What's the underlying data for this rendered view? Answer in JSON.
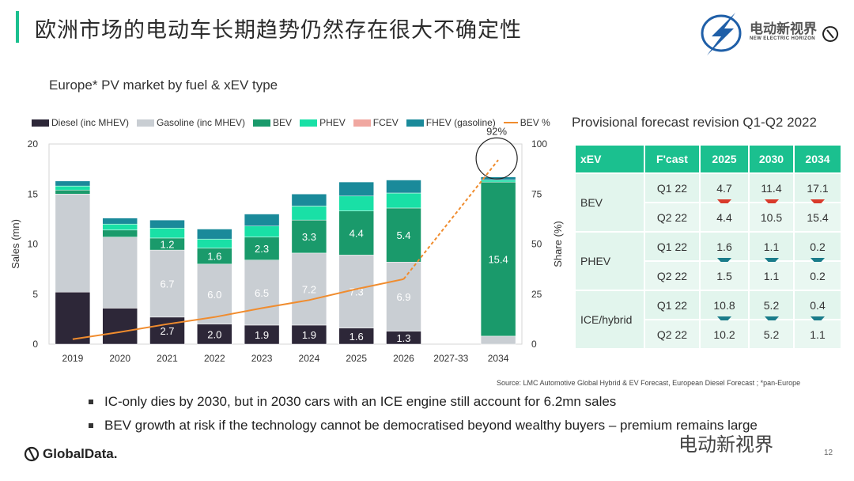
{
  "header": {
    "title": "欧洲市场的电动车长期趋势仍然存在很大不确定性",
    "brand_name": "电动新视界",
    "brand_sub": "NEW ELECTRIC HORIZON"
  },
  "chart_data": {
    "type": "bar",
    "subtitle": "Europe* PV market by fuel & xEV type",
    "ylabel": "Sales (mn)",
    "y2label": "Share (%)",
    "ylim": [
      0,
      20
    ],
    "y2lim": [
      0,
      100
    ],
    "yticks": [
      "0",
      "5",
      "10",
      "15",
      "20"
    ],
    "y2ticks": [
      "0",
      "25",
      "50",
      "75",
      "100"
    ],
    "categories": [
      "2019",
      "2020",
      "2021",
      "2022",
      "2023",
      "2024",
      "2025",
      "2026",
      "2027-33",
      "2034"
    ],
    "series": [
      {
        "name": "Diesel (inc MHEV)",
        "color": "#2d2738",
        "values": [
          5.2,
          3.6,
          2.7,
          2.0,
          1.9,
          1.9,
          1.6,
          1.3,
          null,
          0.0
        ]
      },
      {
        "name": "Gasoline (inc MHEV)",
        "color": "#c9ced3",
        "values": [
          9.8,
          7.1,
          6.7,
          6.0,
          6.5,
          7.2,
          7.3,
          6.9,
          null,
          0.8
        ]
      },
      {
        "name": "BEV",
        "color": "#1a9a6b",
        "values": [
          0.4,
          0.7,
          1.2,
          1.6,
          2.3,
          3.3,
          4.4,
          5.4,
          null,
          15.4
        ]
      },
      {
        "name": "PHEV",
        "color": "#19e0a6",
        "values": [
          0.4,
          0.6,
          1.0,
          0.9,
          1.1,
          1.4,
          1.5,
          1.5,
          null,
          0.2
        ]
      },
      {
        "name": "FCEV",
        "color": "#f0a7a0",
        "values": [
          0.0,
          0.0,
          0.0,
          0.0,
          0.0,
          0.0,
          0.0,
          0.0,
          null,
          0.0
        ]
      },
      {
        "name": "FHEV (gasoline)",
        "color": "#1a8a9a",
        "values": [
          0.5,
          0.6,
          0.8,
          1.0,
          1.2,
          1.2,
          1.4,
          1.3,
          null,
          0.3
        ]
      }
    ],
    "bar_labels": {
      "Diesel (inc MHEV)": [
        null,
        null,
        "2.7",
        "2.0",
        "1.9",
        "1.9",
        "1.6",
        "1.3",
        null,
        null
      ],
      "Gasoline (inc MHEV)": [
        null,
        null,
        "6.7",
        "6.0",
        "6.5",
        "7.2",
        "7.3",
        "6.9",
        null,
        null
      ],
      "BEV": [
        null,
        null,
        "1.2",
        "1.6",
        "2.3",
        "3.3",
        "4.4",
        "5.4",
        null,
        "15.4"
      ]
    },
    "line": {
      "name": "BEV %",
      "color": "#f08c2e",
      "axis": "right",
      "values": [
        2.5,
        6,
        10,
        13.5,
        18,
        22,
        27.5,
        32.5,
        null,
        92
      ]
    },
    "annotation": "92%"
  },
  "forecast": {
    "title": "Provisional forecast revision Q1-Q2 2022",
    "headers": [
      "xEV",
      "F'cast",
      "2025",
      "2030",
      "2034"
    ],
    "groups": [
      {
        "name": "BEV",
        "arrow": "red",
        "rows": [
          {
            "fcast": "Q1 22",
            "values": [
              "4.7",
              "11.4",
              "17.1"
            ]
          },
          {
            "fcast": "Q2 22",
            "values": [
              "4.4",
              "10.5",
              "15.4"
            ]
          }
        ]
      },
      {
        "name": "PHEV",
        "arrow": "teal",
        "rows": [
          {
            "fcast": "Q1 22",
            "values": [
              "1.6",
              "1.1",
              "0.2"
            ]
          },
          {
            "fcast": "Q2 22",
            "values": [
              "1.5",
              "1.1",
              "0.2"
            ]
          }
        ]
      },
      {
        "name": "ICE/hybrid",
        "arrow": "teal",
        "rows": [
          {
            "fcast": "Q1 22",
            "values": [
              "10.8",
              "5.2",
              "0.4"
            ]
          },
          {
            "fcast": "Q2 22",
            "values": [
              "10.2",
              "5.2",
              "1.1"
            ]
          }
        ]
      }
    ]
  },
  "source": "Source: LMC Automotive Global Hybrid & EV Forecast, European Diesel Forecast ; *pan-Europe",
  "bullets": [
    "IC-only dies by 2030, but in 2030 cars with an ICE engine still account for 6.2mn sales",
    "BEV growth at risk if the technology cannot be democratised beyond wealthy buyers – premium remains large"
  ],
  "footer": {
    "logo": "GlobalData.",
    "watermark": "电动新视界",
    "page": "12"
  }
}
